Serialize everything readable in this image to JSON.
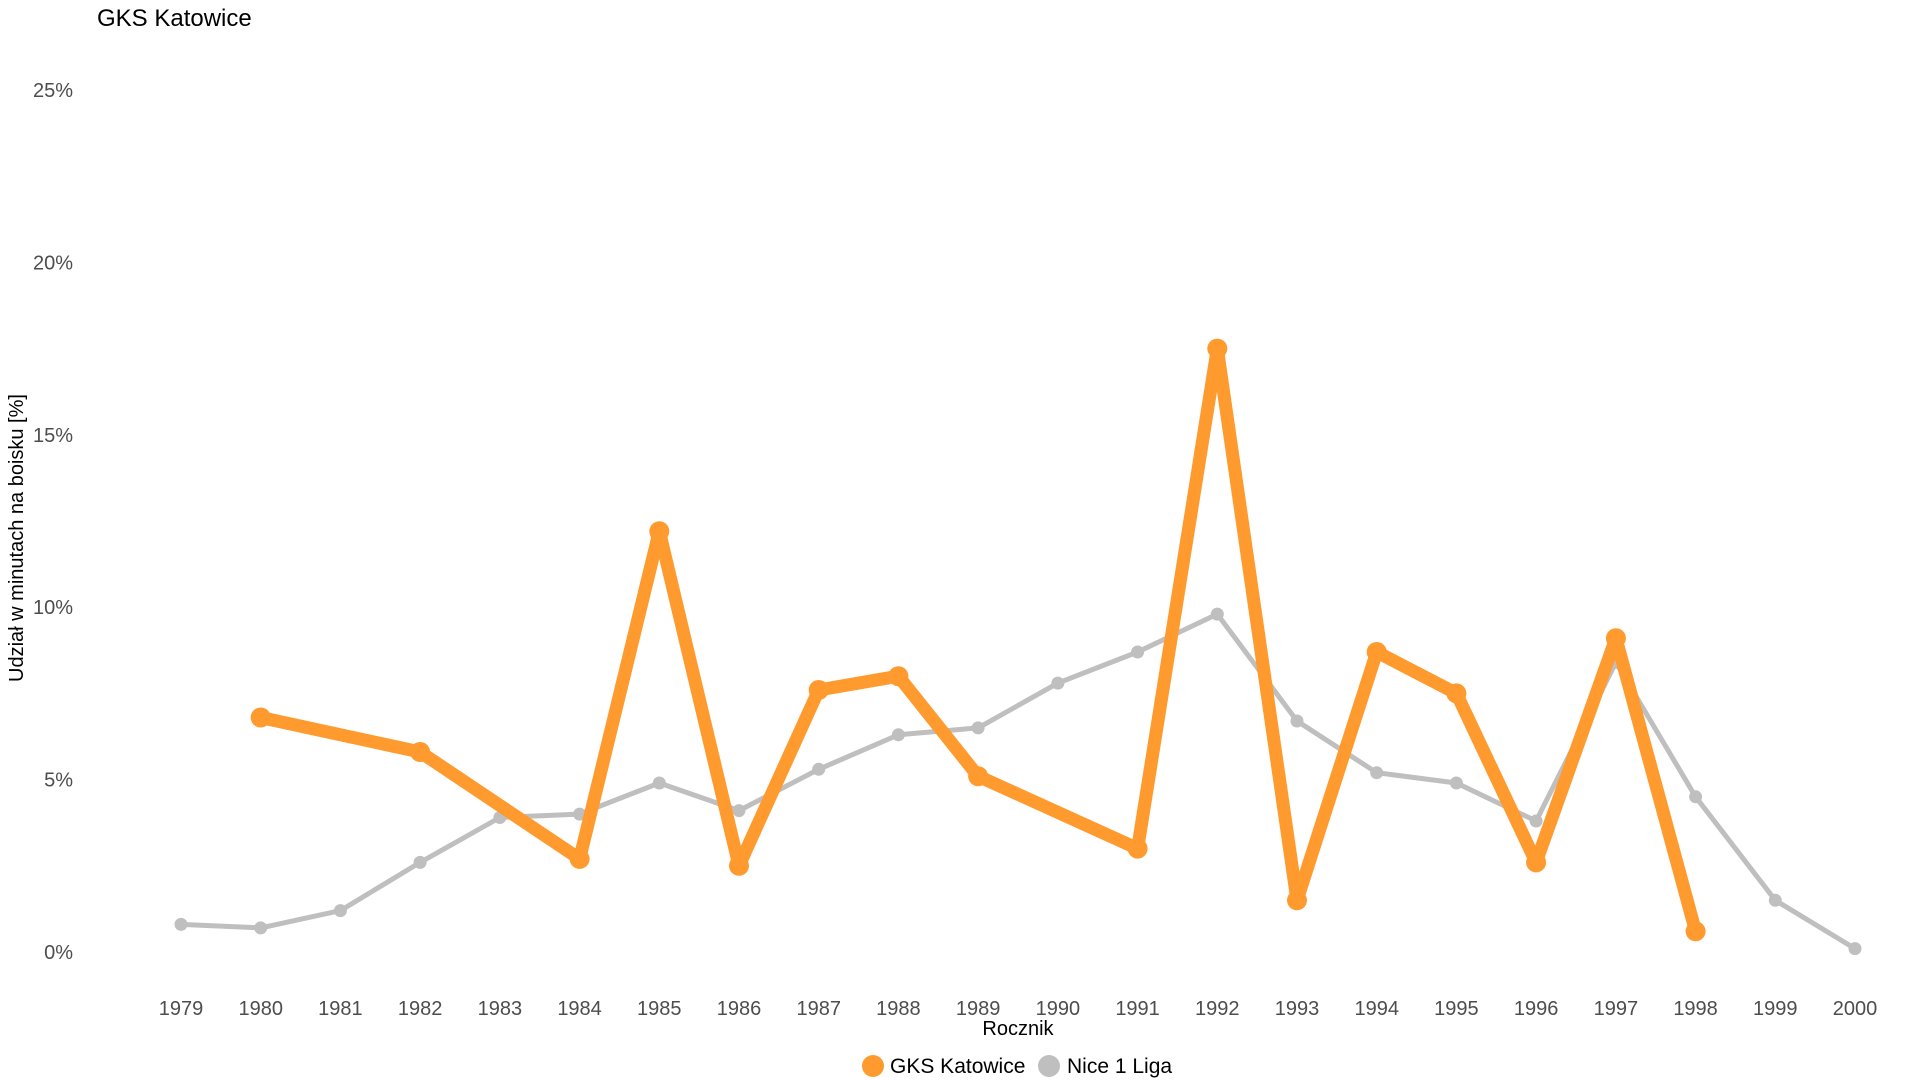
{
  "chart_data": {
    "type": "line",
    "title": "GKS Katowice",
    "xlabel": "Rocznik",
    "ylabel": "Udział w minutach na boisku [%]",
    "x": [
      1979,
      1980,
      1981,
      1982,
      1983,
      1984,
      1985,
      1986,
      1987,
      1988,
      1989,
      1990,
      1991,
      1992,
      1993,
      1994,
      1995,
      1996,
      1997,
      1998,
      1999,
      2000
    ],
    "y_ticks": [
      0,
      5,
      10,
      15,
      20,
      25
    ],
    "y_tick_labels": [
      "0%",
      "5%",
      "10%",
      "15%",
      "20%",
      "25%"
    ],
    "ylim": [
      0,
      25
    ],
    "grid": false,
    "legend_position": "bottom",
    "series": [
      {
        "name": "GKS Katowice",
        "color": "#ff9a2e",
        "points": [
          [
            1980,
            6.8
          ],
          [
            1982,
            5.8
          ],
          [
            1984,
            2.7
          ],
          [
            1985,
            12.2
          ],
          [
            1986,
            2.5
          ],
          [
            1987,
            7.6
          ],
          [
            1988,
            8.0
          ],
          [
            1989,
            5.1
          ],
          [
            1991,
            3.0
          ],
          [
            1992,
            17.5
          ],
          [
            1993,
            1.5
          ],
          [
            1994,
            8.7
          ],
          [
            1995,
            7.5
          ],
          [
            1996,
            2.6
          ],
          [
            1997,
            9.1
          ],
          [
            1998,
            0.6
          ]
        ]
      },
      {
        "name": "Nice 1 Liga",
        "color": "#bfbfbf",
        "points": [
          [
            1979,
            0.8
          ],
          [
            1980,
            0.7
          ],
          [
            1981,
            1.2
          ],
          [
            1982,
            2.6
          ],
          [
            1983,
            3.9
          ],
          [
            1984,
            4.0
          ],
          [
            1985,
            4.9
          ],
          [
            1986,
            4.1
          ],
          [
            1987,
            5.3
          ],
          [
            1988,
            6.3
          ],
          [
            1989,
            6.5
          ],
          [
            1990,
            7.8
          ],
          [
            1991,
            8.7
          ],
          [
            1992,
            9.8
          ],
          [
            1993,
            6.7
          ],
          [
            1994,
            5.2
          ],
          [
            1995,
            4.9
          ],
          [
            1996,
            3.8
          ],
          [
            1997,
            8.4
          ],
          [
            1998,
            4.5
          ],
          [
            1999,
            1.5
          ],
          [
            2000,
            0.1
          ]
        ]
      }
    ]
  }
}
